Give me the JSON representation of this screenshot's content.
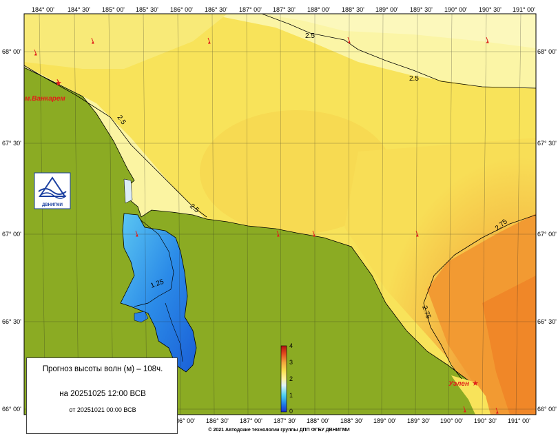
{
  "map": {
    "lon_labels": [
      "184° 00'",
      "184° 30'",
      "185° 00'",
      "185° 30'",
      "186° 00'",
      "186° 30'",
      "187° 00'",
      "187° 30'",
      "188° 00'",
      "188° 30'",
      "189° 00'",
      "189° 30'",
      "190° 00'",
      "190° 30'",
      "191° 00'"
    ],
    "lat_labels": [
      "68° 00'",
      "67° 30'",
      "67° 00'",
      "66° 30'",
      "66° 00'"
    ],
    "contour_labels": [
      "2.5",
      "2.5",
      "2.5",
      "2.5",
      "2.75",
      "2.75",
      "1.25"
    ],
    "places": [
      "м.Ванкарем",
      "Уэлен"
    ],
    "colors": {
      "land": "#8bab23",
      "sea_light": "#fbf7b4",
      "sea_yellow": "#f7e45c",
      "sea_orange": "#f1a43c",
      "sea_deep_orange": "#f08a2a",
      "lagoon_blue": "#2b84e8",
      "arrow_red": "#e0201a"
    }
  },
  "colorbar": {
    "tick_labels": [
      "4",
      "3",
      "2",
      "1",
      "0"
    ],
    "range": [
      0,
      4
    ]
  },
  "logo": {
    "text": "ДВНИГМИ"
  },
  "legend": {
    "title": "Прогноз высоты волн (м) – 108ч.",
    "forecast_date": "на 20251025 12:00 ВСВ",
    "base_date": "от 20251021 00:00 ВСВ"
  },
  "footer": {
    "copyright": "© 2021 Автодские технологии группы ДПП ФГБУ ДВНИГМИ"
  }
}
